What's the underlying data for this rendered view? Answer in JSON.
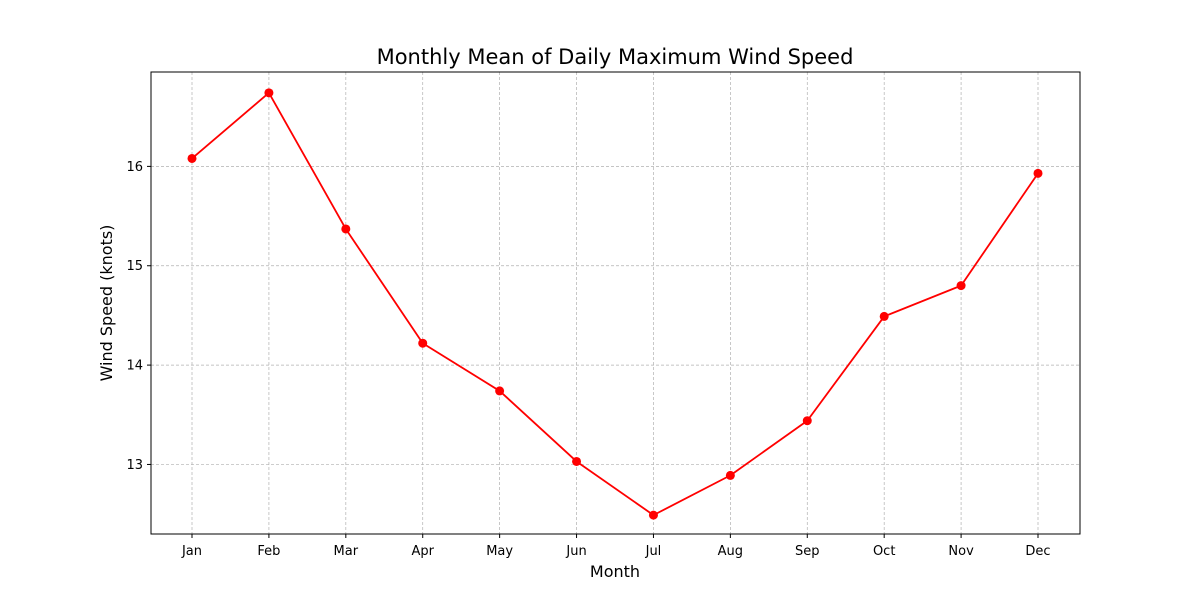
{
  "chart_data": {
    "type": "line",
    "title": "Monthly Mean of Daily Maximum Wind Speed",
    "xlabel": "Month",
    "ylabel": "Wind Speed (knots)",
    "categories": [
      "Jan",
      "Feb",
      "Mar",
      "Apr",
      "May",
      "Jun",
      "Jul",
      "Aug",
      "Sep",
      "Oct",
      "Nov",
      "Dec"
    ],
    "series": [
      {
        "values": [
          16.08,
          16.74,
          15.37,
          14.22,
          13.74,
          13.03,
          12.49,
          12.89,
          13.44,
          14.49,
          14.8,
          15.93
        ],
        "color": "#ff0000",
        "marker": "circle"
      }
    ],
    "ylim": [
      12.3,
      16.95
    ],
    "yticks": [
      13,
      14,
      15,
      16
    ],
    "grid": true,
    "legend": "none"
  }
}
